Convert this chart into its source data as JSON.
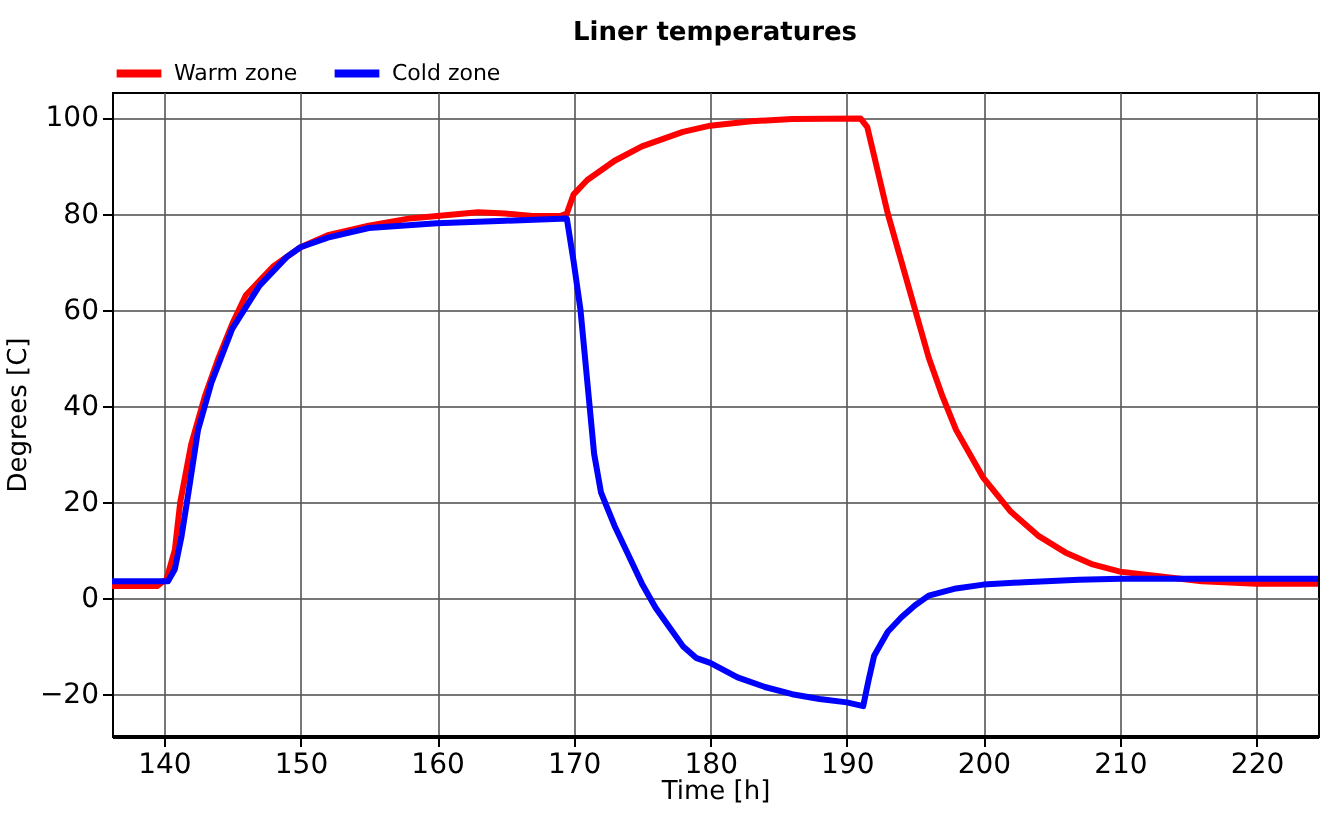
{
  "chart_data": {
    "type": "line",
    "title": "Liner temperatures",
    "xlabel": "Time [h]",
    "ylabel": "Degrees [C]",
    "xlim": [
      136.2,
      224.5
    ],
    "xticks": [
      140,
      150,
      160,
      170,
      180,
      190,
      200,
      210,
      220
    ],
    "ylim": [
      -28.7,
      105.3
    ],
    "yticks": [
      -20,
      0,
      20,
      40,
      60,
      80,
      100
    ],
    "grid": true,
    "legend": "top left",
    "line_style": "solid",
    "series": [
      {
        "name": "Warm zone",
        "color": "#ff0000",
        "x": [
          136.2,
          139.5,
          140.2,
          140.8,
          141.2,
          142,
          143,
          144,
          145,
          146,
          148,
          150,
          152,
          155,
          158,
          160,
          163,
          165,
          167,
          169,
          169.5,
          170,
          171,
          173,
          175,
          178,
          180,
          183,
          186,
          191,
          191.5,
          192,
          193,
          194,
          195,
          196,
          197,
          198,
          200,
          202,
          204,
          206,
          208,
          210,
          213,
          216,
          220,
          224.5
        ],
        "values": [
          2.5,
          2.5,
          4,
          10,
          20,
          32,
          42,
          50,
          57,
          63,
          69,
          73,
          75.5,
          77.5,
          79,
          79.5,
          80.3,
          80,
          79.5,
          79.5,
          80,
          84,
          87,
          91,
          94,
          97,
          98.3,
          99.2,
          99.7,
          99.8,
          98,
          92,
          80,
          70,
          60,
          50,
          42,
          35,
          25,
          18,
          13,
          9.5,
          7,
          5.5,
          4.5,
          3.5,
          3,
          3
        ]
      },
      {
        "name": "Cold zone",
        "color": "#0000ff",
        "x": [
          136.2,
          140.3,
          140.8,
          141.3,
          141.8,
          142.5,
          143.5,
          145,
          147,
          149,
          150,
          152,
          155,
          160,
          165,
          169.5,
          170,
          170.5,
          171,
          171.5,
          172,
          173,
          174,
          175,
          176,
          177,
          178,
          179,
          180,
          182,
          184,
          186,
          188,
          190,
          191.2,
          191.6,
          192,
          193,
          194,
          195,
          196,
          198,
          200,
          203,
          207,
          210,
          215,
          224.5
        ],
        "values": [
          3.5,
          3.5,
          6,
          13,
          22,
          35,
          45,
          56,
          65,
          71,
          73,
          75,
          77,
          78,
          78.5,
          79,
          70,
          60,
          45,
          30,
          22,
          15,
          9,
          3,
          -2,
          -6,
          -10,
          -12.5,
          -13.5,
          -16.5,
          -18.5,
          -20,
          -21,
          -21.7,
          -22.5,
          -17,
          -12,
          -7,
          -4,
          -1.5,
          0.5,
          2,
          2.8,
          3.3,
          3.8,
          4,
          4,
          4
        ]
      }
    ]
  }
}
